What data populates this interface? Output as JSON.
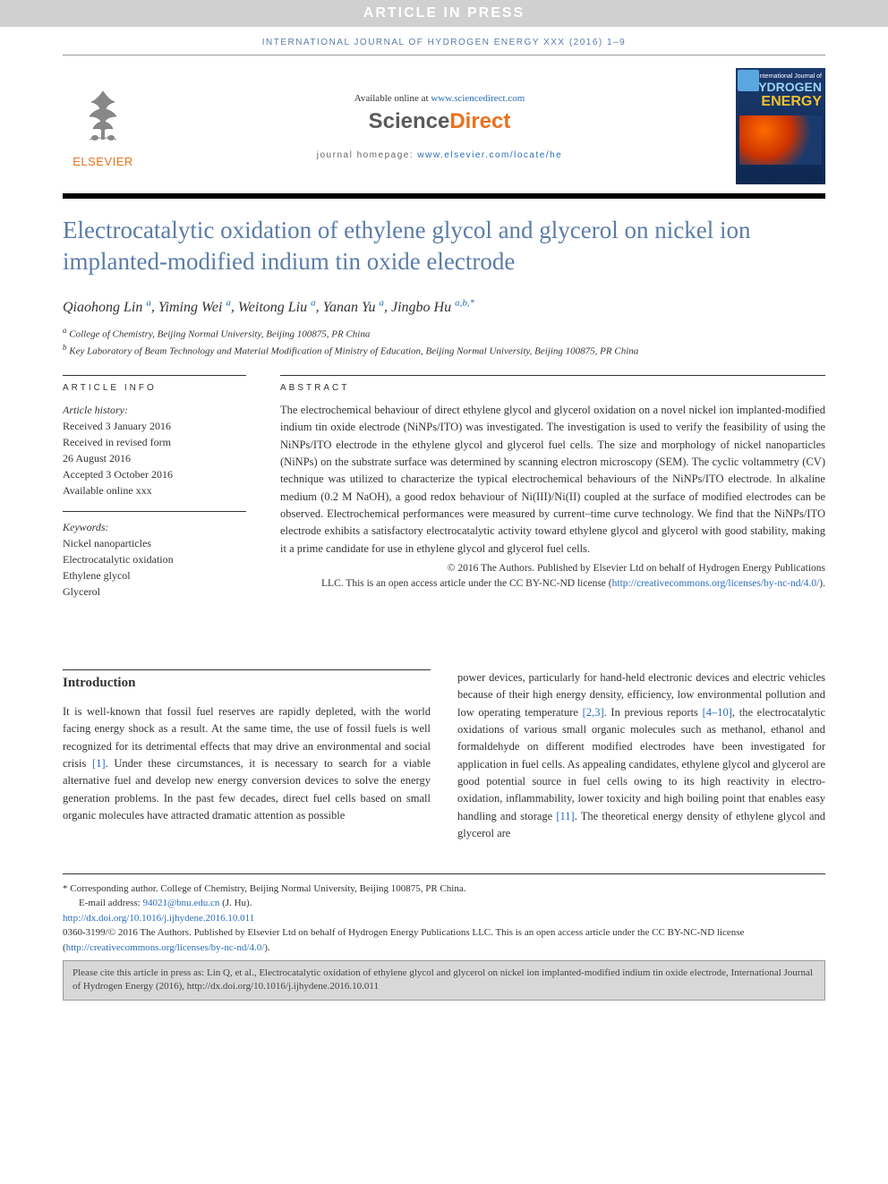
{
  "banner": "ARTICLE IN PRESS",
  "running_head": "INTERNATIONAL JOURNAL OF HYDROGEN ENERGY XXX (2016) 1–9",
  "header": {
    "elsevier": "ELSEVIER",
    "available_prefix": "Available online at ",
    "available_url": "www.sciencedirect.com",
    "sd_science": "Science",
    "sd_direct": "Direct",
    "homepage_prefix": "journal homepage: ",
    "homepage_url": "www.elsevier.com/locate/he",
    "cover": {
      "line1": "International Journal of",
      "line2": "HYDROGEN",
      "line3": "ENERGY"
    }
  },
  "title": "Electrocatalytic oxidation of ethylene glycol and glycerol on nickel ion implanted-modified indium tin oxide electrode",
  "authors": [
    {
      "name": "Qiaohong Lin",
      "sup": "a"
    },
    {
      "name": "Yiming Wei",
      "sup": "a"
    },
    {
      "name": "Weitong Liu",
      "sup": "a"
    },
    {
      "name": "Yanan Yu",
      "sup": "a"
    },
    {
      "name": "Jingbo Hu",
      "sup": "a,b,",
      "star": "*"
    }
  ],
  "affiliations": [
    {
      "sup": "a",
      "text": "College of Chemistry, Beijing Normal University, Beijing 100875, PR China"
    },
    {
      "sup": "b",
      "text": "Key Laboratory of Beam Technology and Material Modification of Ministry of Education, Beijing Normal University, Beijing 100875, PR China"
    }
  ],
  "article_info": {
    "label": "ARTICLE INFO",
    "history_label": "Article history:",
    "history": [
      "Received 3 January 2016",
      "Received in revised form",
      "26 August 2016",
      "Accepted 3 October 2016",
      "Available online xxx"
    ],
    "keywords_label": "Keywords:",
    "keywords": [
      "Nickel nanoparticles",
      "Electrocatalytic oxidation",
      "Ethylene glycol",
      "Glycerol"
    ]
  },
  "abstract": {
    "label": "ABSTRACT",
    "text": "The electrochemical behaviour of direct ethylene glycol and glycerol oxidation on a novel nickel ion implanted-modified indium tin oxide electrode (NiNPs/ITO) was investigated. The investigation is used to verify the feasibility of using the NiNPs/ITO electrode in the ethylene glycol and glycerol fuel cells. The size and morphology of nickel nanoparticles (NiNPs) on the substrate surface was determined by scanning electron microscopy (SEM). The cyclic voltammetry (CV) technique was utilized to characterize the typical electrochemical behaviours of the NiNPs/ITO electrode. In alkaline medium (0.2 M NaOH), a good redox behaviour of Ni(III)/Ni(II) coupled at the surface of modified electrodes can be observed. Electrochemical performances were measured by current–time curve technology. We find that the NiNPs/ITO electrode exhibits a satisfactory electrocatalytic activity toward ethylene glycol and glycerol with good stability, making it a prime candidate for use in ethylene glycol and glycerol fuel cells.",
    "copyright1": "© 2016 The Authors. Published by Elsevier Ltd on behalf of Hydrogen Energy Publications",
    "copyright2": "LLC. This is an open access article under the CC BY-NC-ND license (",
    "license_url": "http://creativecommons.org/licenses/by-nc-nd/4.0/",
    "copyright3": ")."
  },
  "intro": {
    "heading": "Introduction",
    "left": "It is well-known that fossil fuel reserves are rapidly depleted, with the world facing energy shock as a result. At the same time, the use of fossil fuels is well recognized for its detrimental effects that may drive an environmental and social crisis [1]. Under these circumstances, it is necessary to search for a viable alternative fuel and develop new energy conversion devices to solve the energy generation problems. In the past few decades, direct fuel cells based on small organic molecules have attracted dramatic attention as possible",
    "right": "power devices, particularly for hand-held electronic devices and electric vehicles because of their high energy density, efficiency, low environmental pollution and low operating temperature [2,3]. In previous reports [4–10], the electrocatalytic oxidations of various small organic molecules such as methanol, ethanol and formaldehyde on different modified electrodes have been investigated for application in fuel cells. As appealing candidates, ethylene glycol and glycerol are good potential source in fuel cells owing to its high reactivity in electro-oxidation, inflammability, lower toxicity and high boiling point that enables easy handling and storage [11]. The theoretical energy density of ethylene glycol and glycerol are",
    "ref1": "[1]",
    "ref2": "[2,3]",
    "ref3": "[4–10]",
    "ref4": "[11]"
  },
  "footnote": {
    "corresponding": "* Corresponding author. College of Chemistry, Beijing Normal University, Beijing 100875, PR China.",
    "email_label": "E-mail address: ",
    "email": "94021@bnu.edu.cn",
    "email_suffix": " (J. Hu).",
    "doi": "http://dx.doi.org/10.1016/j.ijhydene.2016.10.011",
    "issn_line": "0360-3199/© 2016 The Authors. Published by Elsevier Ltd on behalf of Hydrogen Energy Publications LLC. This is an open access article under the CC BY-NC-ND license (",
    "issn_url": "http://creativecommons.org/licenses/by-nc-nd/4.0/",
    "issn_end": ")."
  },
  "cite_box": "Please cite this article in press as: Lin Q, et al., Electrocatalytic oxidation of ethylene glycol and glycerol on nickel ion implanted-modified indium tin oxide electrode, International Journal of Hydrogen Energy (2016), http://dx.doi.org/10.1016/j.ijhydene.2016.10.011"
}
